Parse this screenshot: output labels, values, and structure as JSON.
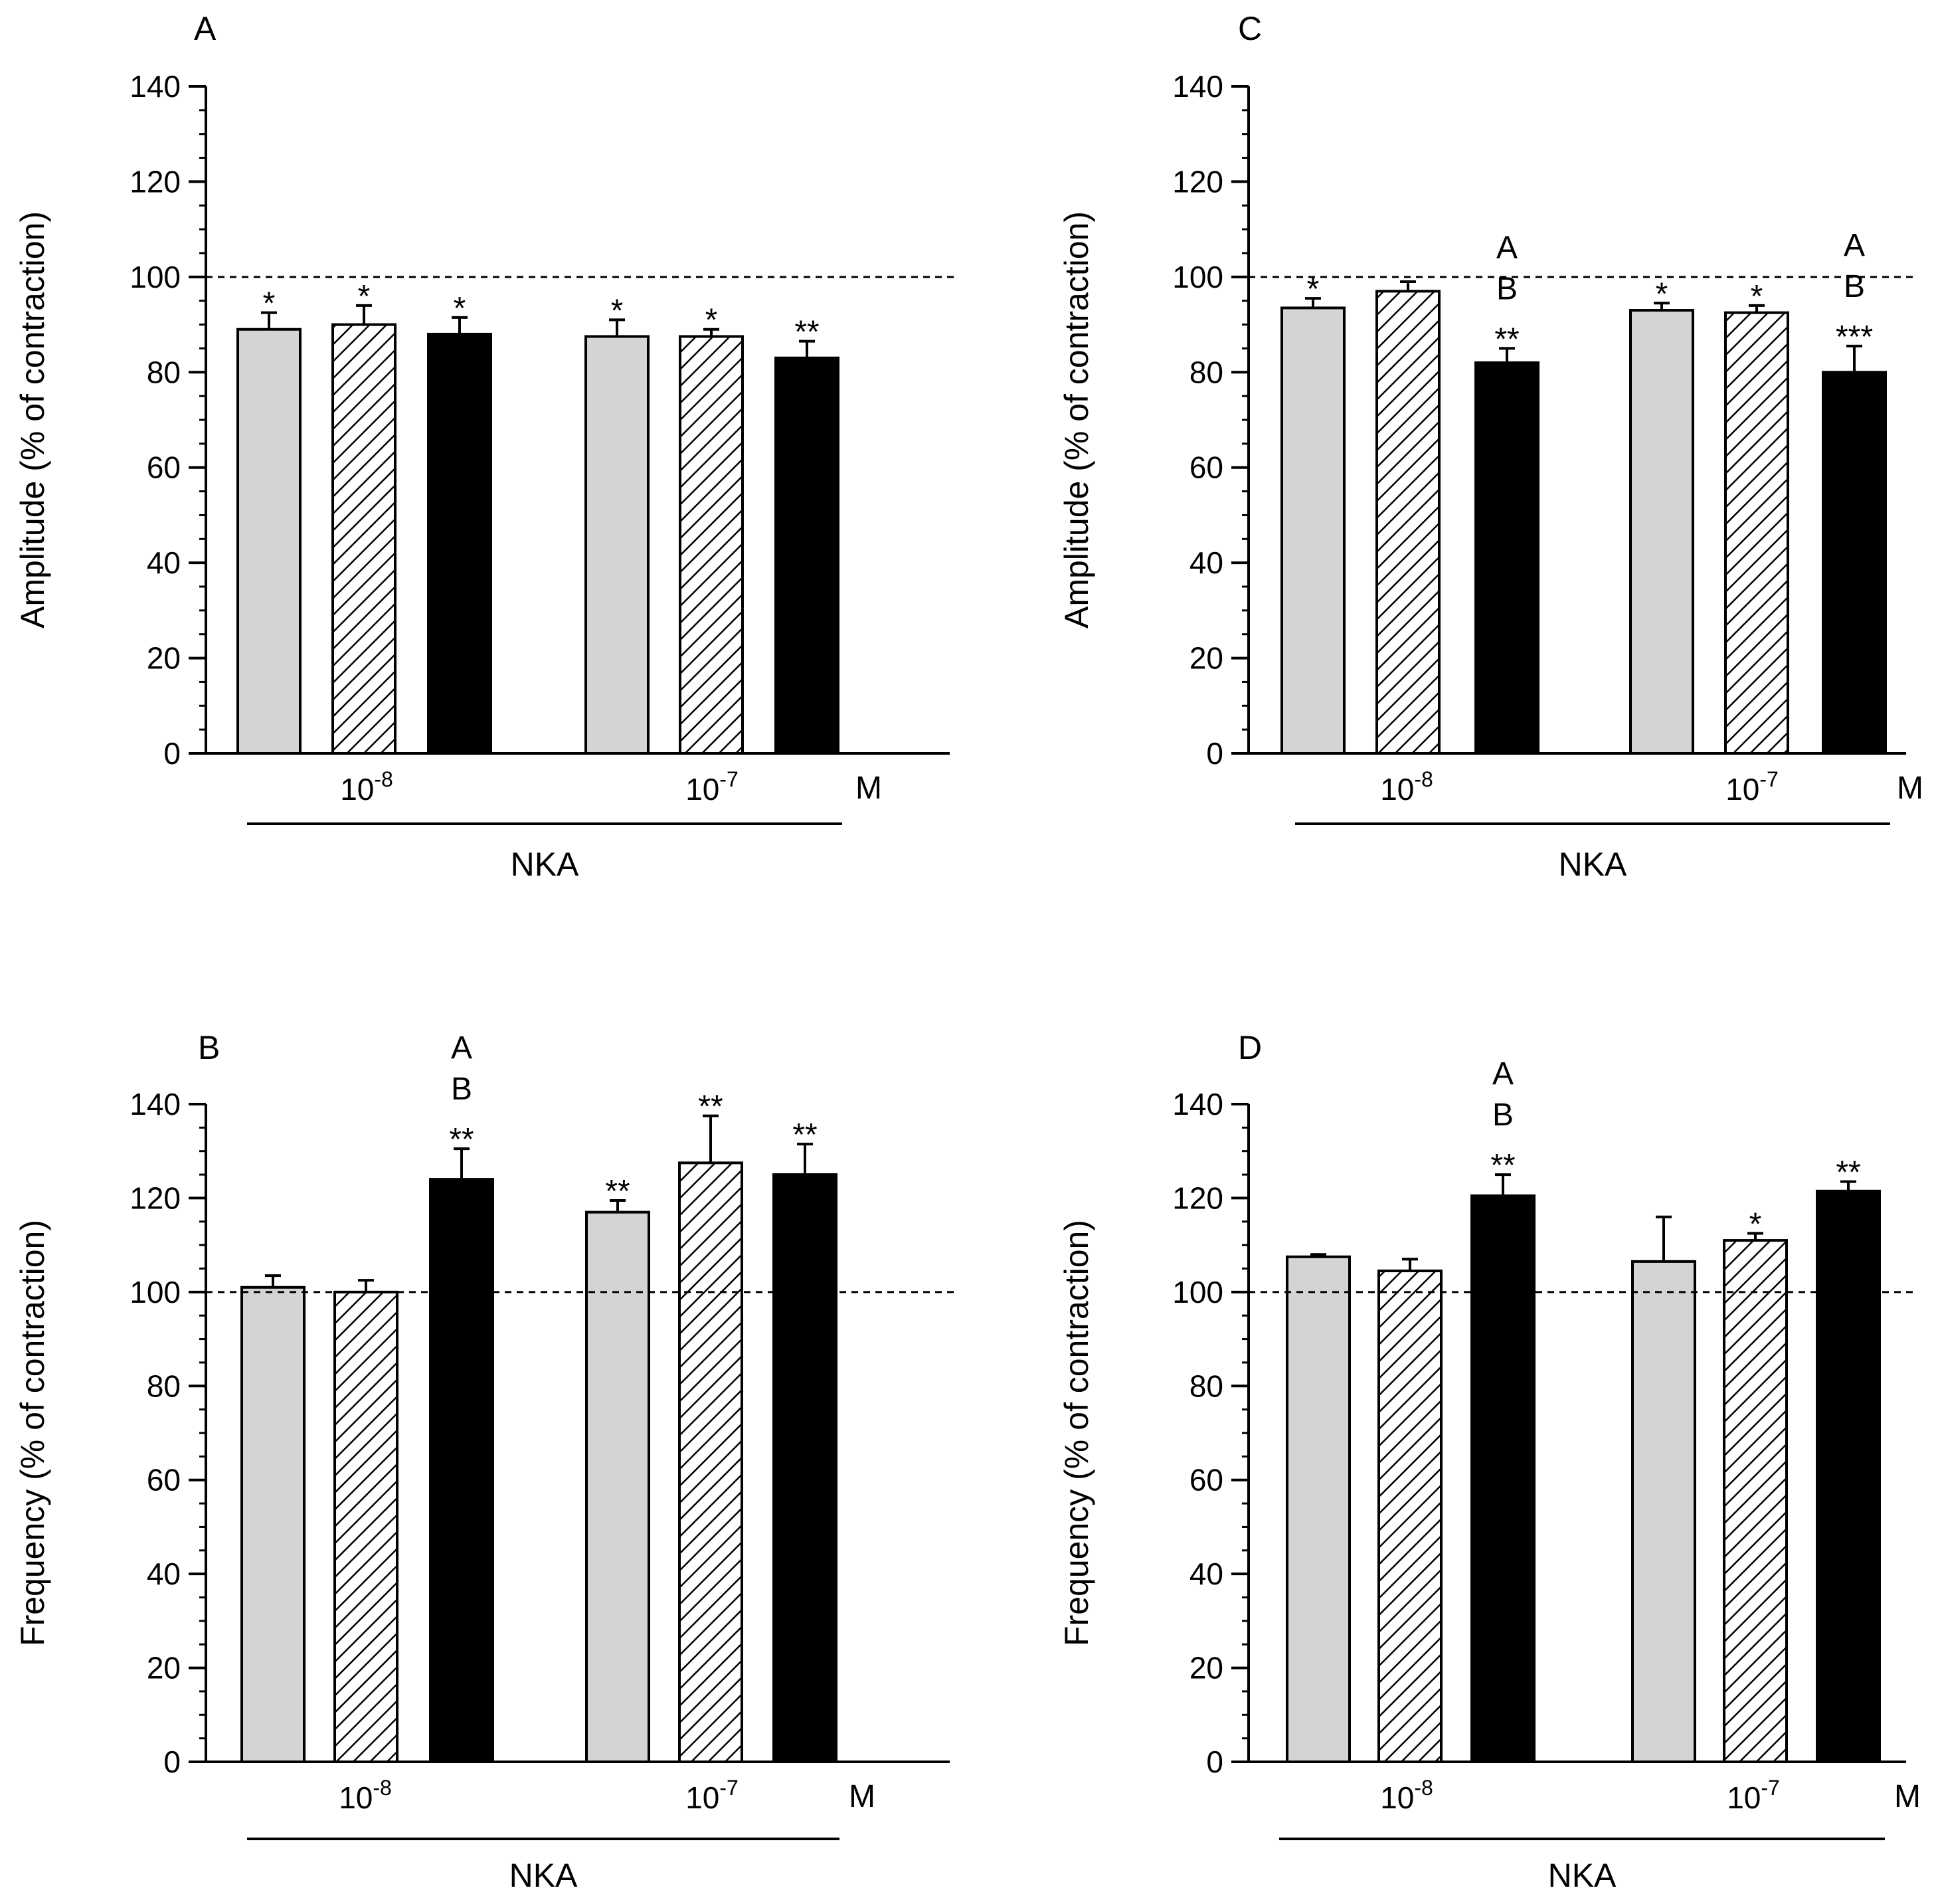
{
  "chart_data": [
    {
      "type": "bar",
      "panel": "A",
      "ylabel": "Amplitude (% of contraction)",
      "ylim": [
        0,
        140
      ],
      "yticks": [
        0,
        20,
        40,
        60,
        80,
        100,
        120,
        140
      ],
      "reference_line": 100,
      "groups": [
        {
          "base": "10",
          "exp": "-8"
        },
        {
          "base": "10",
          "exp": "-7"
        }
      ],
      "unit": "M",
      "drug": "NKA",
      "series": [
        {
          "style": "light-gray",
          "values": [
            89,
            87.5
          ],
          "errors": [
            3.5,
            3.5
          ],
          "annotations": [
            [
              "*"
            ],
            [
              "*"
            ]
          ]
        },
        {
          "style": "hatched",
          "values": [
            90,
            87.5
          ],
          "errors": [
            4,
            1.5
          ],
          "annotations": [
            [
              "*"
            ],
            [
              "*"
            ]
          ]
        },
        {
          "style": "black",
          "values": [
            88,
            83
          ],
          "errors": [
            3.5,
            3.5
          ],
          "annotations": [
            [
              "*"
            ],
            [
              "**"
            ]
          ]
        }
      ]
    },
    {
      "type": "bar",
      "panel": "B",
      "ylabel": "Frequency (% of contraction)",
      "ylim": [
        0,
        140
      ],
      "yticks": [
        0,
        20,
        40,
        60,
        80,
        100,
        120,
        140
      ],
      "reference_line": 100,
      "groups": [
        {
          "base": "10",
          "exp": "-8"
        },
        {
          "base": "10",
          "exp": "-7"
        }
      ],
      "unit": "M",
      "drug": "NKA",
      "series": [
        {
          "style": "light-gray",
          "values": [
            101,
            117
          ],
          "errors": [
            2.5,
            2.5
          ],
          "annotations": [
            [],
            [
              "**"
            ]
          ]
        },
        {
          "style": "hatched",
          "values": [
            100,
            127.5
          ],
          "errors": [
            2.5,
            10
          ],
          "annotations": [
            [],
            [
              "**"
            ]
          ]
        },
        {
          "style": "black",
          "values": [
            124,
            125
          ],
          "errors": [
            6.5,
            6.5
          ],
          "annotations": [
            [
              "A",
              "B",
              "**"
            ],
            [
              "**"
            ]
          ]
        }
      ]
    },
    {
      "type": "bar",
      "panel": "C",
      "ylabel": "Amplitude (% of contraction)",
      "ylim": [
        0,
        140
      ],
      "yticks": [
        0,
        20,
        40,
        60,
        80,
        100,
        120,
        140
      ],
      "reference_line": 100,
      "groups": [
        {
          "base": "10",
          "exp": "-8"
        },
        {
          "base": "10",
          "exp": "-7"
        }
      ],
      "unit": "M",
      "drug": "NKA",
      "series": [
        {
          "style": "light-gray",
          "values": [
            93.5,
            93
          ],
          "errors": [
            2,
            1.5
          ],
          "annotations": [
            [
              "*"
            ],
            [
              "*"
            ]
          ]
        },
        {
          "style": "hatched",
          "values": [
            97,
            92.5
          ],
          "errors": [
            2,
            1.5
          ],
          "annotations": [
            [],
            [
              "*"
            ]
          ]
        },
        {
          "style": "black",
          "values": [
            82,
            80
          ],
          "errors": [
            3,
            5.5
          ],
          "annotations": [
            [
              "A",
              "B",
              "**"
            ],
            [
              "A",
              "B",
              "***"
            ]
          ]
        }
      ]
    },
    {
      "type": "bar",
      "panel": "D",
      "ylabel": "Frequency (% of contraction)",
      "ylim": [
        0,
        140
      ],
      "yticks": [
        0,
        20,
        40,
        60,
        80,
        100,
        120,
        140
      ],
      "reference_line": 100,
      "groups": [
        {
          "base": "10",
          "exp": "-8"
        },
        {
          "base": "10",
          "exp": "-7"
        }
      ],
      "unit": "M",
      "drug": "NKA",
      "series": [
        {
          "style": "light-gray",
          "values": [
            107.5,
            106.5
          ],
          "errors": [
            0.5,
            9.5
          ],
          "annotations": [
            [],
            []
          ]
        },
        {
          "style": "hatched",
          "values": [
            104.5,
            111
          ],
          "errors": [
            2.5,
            1.5
          ],
          "annotations": [
            [],
            [
              "*"
            ]
          ]
        },
        {
          "style": "black",
          "values": [
            120.5,
            121.5
          ],
          "errors": [
            4.5,
            2
          ],
          "annotations": [
            [
              "A",
              "B",
              "**"
            ],
            [
              "**"
            ]
          ]
        }
      ]
    }
  ]
}
